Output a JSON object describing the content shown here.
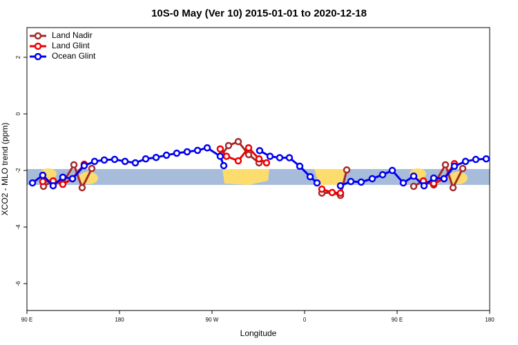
{
  "chart_data": {
    "type": "line",
    "title": "10S-0 May (Ver 10)   2015-01-01 to 2020-12-18",
    "x_label": "Longitude",
    "y_label": "XCO2 - MLO trend (ppm)",
    "xlim": [
      90,
      540
    ],
    "xticks": [
      {
        "value": 90,
        "label": "90 E"
      },
      {
        "value": 180,
        "label": "180"
      },
      {
        "value": 270,
        "label": "90 W"
      },
      {
        "value": 360,
        "label": "0"
      },
      {
        "value": 450,
        "label": "90 E"
      },
      {
        "value": 540,
        "label": "180"
      }
    ],
    "ylim": [
      -6.95,
      3.05
    ],
    "yticks": [
      -6,
      -4,
      -2,
      0,
      2
    ],
    "legend": "top-left",
    "series": [
      {
        "name": "Land Nadir",
        "color": "#a52a2a",
        "x": [
          106.1,
          115.5,
          124.9,
          135.7,
          143.7,
          153.1,
          200,
          279.4,
          286.1,
          295.5,
          305.6,
          315.7,
          350,
          376.8,
          386.8,
          394.9,
          401,
          450,
          466.1,
          475.5,
          485.6,
          497,
          504.4,
          513.8
        ],
        "values": [
          -2.56,
          -2.37,
          -2.44,
          -1.8,
          -2.61,
          -1.93,
          null,
          -1.44,
          -1.12,
          -0.98,
          -1.44,
          -1.73,
          null,
          -2.8,
          -2.78,
          -2.88,
          -1.98,
          null,
          -2.56,
          -2.37,
          -2.51,
          -1.8,
          -2.61,
          -1.93
        ]
      },
      {
        "name": "Land Glint",
        "color": "#ee0000",
        "x": [
          105.4,
          115.5,
          124.9,
          134.3,
          145.7,
          200,
          278,
          284.1,
          295.5,
          305.6,
          315.7,
          323,
          350,
          376.8,
          386.8,
          394.9,
          450,
          475.5,
          485.6,
          495.6,
          505.7
        ],
        "values": [
          -2.39,
          -2.37,
          -2.49,
          -2.29,
          -1.78,
          null,
          -1.24,
          -1.5,
          -1.66,
          -1.2,
          -1.59,
          -1.73,
          null,
          -2.66,
          -2.78,
          -2.8,
          null,
          -2.37,
          -2.46,
          -2.29,
          -1.76
        ]
      },
      {
        "name": "Ocean Glint",
        "color": "#0000ee",
        "x": [
          95.4,
          105.4,
          115.5,
          124.9,
          134.3,
          145.7,
          155.8,
          165.2,
          175.3,
          185.4,
          195.4,
          205.5,
          215.6,
          225.7,
          235.7,
          245.8,
          255.9,
          265.3,
          278,
          281.4,
          300,
          316.3,
          326.4,
          335.8,
          345.2,
          355.3,
          365.4,
          372.1,
          385,
          394.9,
          405,
          415,
          425.8,
          435.9,
          445.3,
          456,
          466.1,
          476.2,
          485.6,
          495.6,
          505.7,
          516.5,
          526.5,
          536.6
        ],
        "values": [
          -2.44,
          -2.17,
          -2.54,
          -2.24,
          -2.29,
          -1.83,
          -1.68,
          -1.63,
          -1.61,
          -1.68,
          -1.73,
          -1.59,
          -1.54,
          -1.46,
          -1.39,
          -1.34,
          -1.29,
          -1.2,
          -1.5,
          -1.83,
          null,
          -1.3,
          -1.5,
          -1.55,
          -1.55,
          -1.85,
          -2.22,
          -2.44,
          null,
          -2.54,
          -2.39,
          -2.41,
          -2.29,
          -2.15,
          -2.0,
          -2.44,
          -2.2,
          -2.54,
          -2.27,
          -2.29,
          -1.85,
          -1.68,
          -1.61,
          -1.59
        ]
      }
    ]
  }
}
